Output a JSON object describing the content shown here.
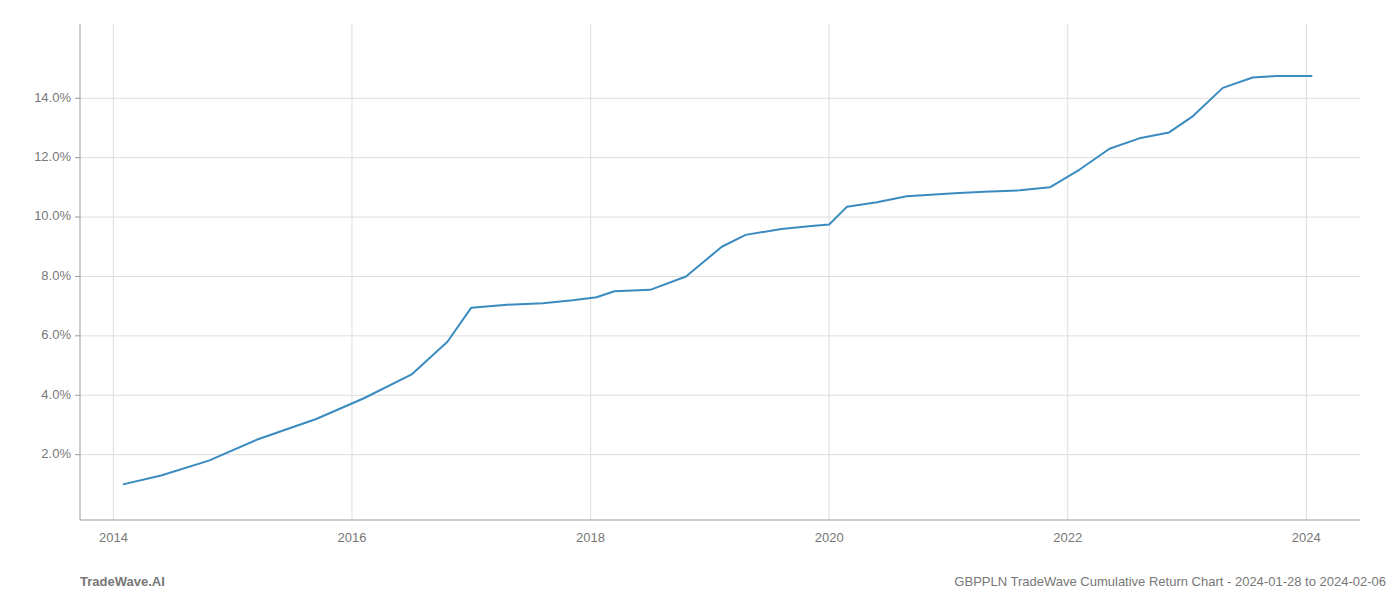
{
  "chart_data": {
    "type": "line",
    "x": [
      2014.08,
      2014.4,
      2014.8,
      2015.2,
      2015.7,
      2016.1,
      2016.5,
      2016.8,
      2017.0,
      2017.3,
      2017.6,
      2017.85,
      2018.05,
      2018.2,
      2018.5,
      2018.8,
      2019.1,
      2019.3,
      2019.6,
      2019.85,
      2020.0,
      2020.15,
      2020.4,
      2020.65,
      2020.85,
      2021.05,
      2021.3,
      2021.6,
      2021.85,
      2022.1,
      2022.35,
      2022.6,
      2022.85,
      2023.05,
      2023.3,
      2023.55,
      2023.75,
      2023.9,
      2024.05
    ],
    "values": [
      1.0,
      1.3,
      1.8,
      2.5,
      3.2,
      3.9,
      4.7,
      5.8,
      6.95,
      7.05,
      7.1,
      7.2,
      7.3,
      7.5,
      7.55,
      8.0,
      9.0,
      9.4,
      9.6,
      9.7,
      9.75,
      10.35,
      10.5,
      10.7,
      10.75,
      10.8,
      10.85,
      10.9,
      11.0,
      11.6,
      12.3,
      12.65,
      12.85,
      13.4,
      14.35,
      14.7,
      14.75,
      14.75,
      14.75
    ],
    "color": "#3a8bbf",
    "xlim": [
      2013.72,
      2024.45
    ],
    "ylim": [
      -0.2,
      16.5
    ],
    "xticks": [
      2014,
      2016,
      2018,
      2020,
      2022,
      2024
    ],
    "yticks": [
      {
        "value": 2.0,
        "label": "2.0%"
      },
      {
        "value": 4.0,
        "label": "4.0%"
      },
      {
        "value": 6.0,
        "label": "6.0%"
      },
      {
        "value": 8.0,
        "label": "8.0%"
      },
      {
        "value": 10.0,
        "label": "10.0%"
      },
      {
        "value": 12.0,
        "label": "12.0%"
      },
      {
        "value": 14.0,
        "label": "14.0%"
      }
    ],
    "grid": true,
    "annotations": [
      "TradeWave.AI",
      "GBPPLN TradeWave Cumulative Return Chart - 2024-01-28 to 2024-02-06"
    ]
  }
}
